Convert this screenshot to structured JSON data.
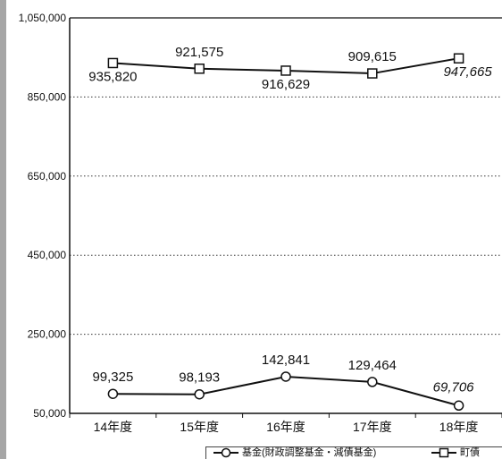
{
  "chart_data": {
    "type": "line",
    "categories": [
      "14年度",
      "15年度",
      "16年度",
      "17年度",
      "18年度"
    ],
    "ylim": [
      50000,
      1050000
    ],
    "yticks": [
      50000,
      250000,
      450000,
      650000,
      850000,
      1050000
    ],
    "ytick_labels": [
      "50,000",
      "250,000",
      "450,000",
      "650,000",
      "850,000",
      "1,050,000"
    ],
    "grid": true,
    "legend_position": "bottom-right",
    "series": [
      {
        "name": "基金(財政調整基金・減債基金)",
        "marker": "circle",
        "values": [
          99325,
          98193,
          142841,
          129464,
          69706
        ],
        "labels": [
          "99,325",
          "98,193",
          "142,841",
          "129,464",
          "69,706"
        ],
        "italic": [
          false,
          false,
          false,
          false,
          true
        ]
      },
      {
        "name": "町債",
        "marker": "square",
        "values": [
          935820,
          921575,
          916629,
          909615,
          947665
        ],
        "labels": [
          "935,820",
          "921,575",
          "916,629",
          "909,615",
          "947,665"
        ],
        "italic": [
          false,
          false,
          false,
          false,
          true
        ]
      }
    ]
  }
}
